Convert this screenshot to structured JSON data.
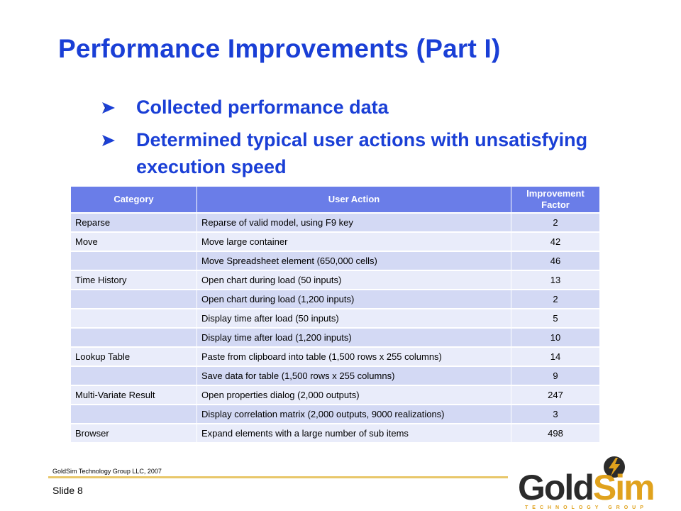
{
  "slide": {
    "title": "Performance Improvements (Part I)",
    "bullets": [
      "Collected performance data",
      "Determined typical user actions with unsatisfying execution speed"
    ]
  },
  "table": {
    "headers": [
      "Category",
      "User Action",
      "Improvement Factor"
    ],
    "rows": [
      [
        "Reparse",
        "Reparse of valid model, using F9 key",
        "2"
      ],
      [
        "Move",
        "Move large container",
        "42"
      ],
      [
        "",
        "Move Spreadsheet element (650,000 cells)",
        "46"
      ],
      [
        "Time History",
        "Open chart during load (50 inputs)",
        "13"
      ],
      [
        "",
        "Open chart during load (1,200 inputs)",
        "2"
      ],
      [
        "",
        "Display time after load (50 inputs)",
        "5"
      ],
      [
        "",
        "Display time after load (1,200 inputs)",
        "10"
      ],
      [
        "Lookup Table",
        "Paste from clipboard into table (1,500 rows x 255 columns)",
        "14"
      ],
      [
        "",
        "Save data for table (1,500 rows x 255 columns)",
        "9"
      ],
      [
        "Multi-Variate Result",
        "Open properties dialog (2,000 outputs)",
        "247"
      ],
      [
        "",
        "Display correlation matrix (2,000 outputs, 9000 realizations)",
        "3"
      ],
      [
        "Browser",
        "Expand elements with a large number of sub items",
        "498"
      ]
    ]
  },
  "footer": {
    "copyright": "GoldSim Technology Group LLC, 2007",
    "slide_number": "Slide 8"
  },
  "logo": {
    "word_part1": "Gold",
    "word_part2": "Sim",
    "tagline": "TECHNOLOGY GROUP"
  },
  "colors": {
    "title": "#1a3fd6",
    "table_header": "#6a7de8",
    "row_odd": "#d3d9f4",
    "row_even": "#e9ecfa",
    "footer_line": "#e8c76a",
    "logo_gold": "#e0a21d"
  }
}
